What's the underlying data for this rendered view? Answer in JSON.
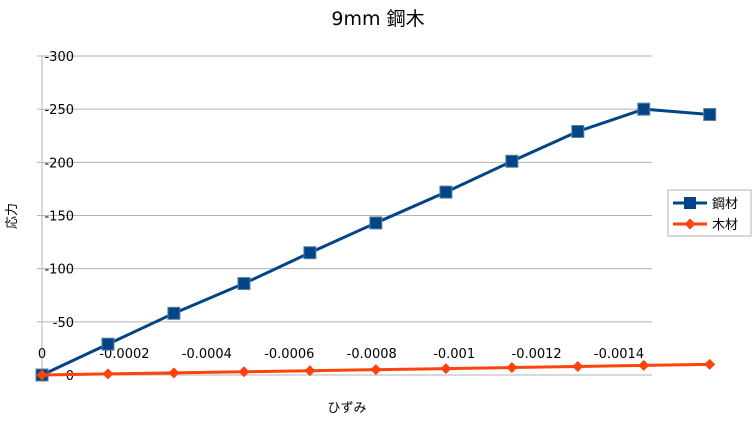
{
  "chart_data": {
    "type": "line",
    "title": "9mm 鋼木",
    "xlabel": "ひずみ",
    "ylabel": "応力",
    "xlim": [
      0,
      -0.00148
    ],
    "ylim": [
      0,
      -300
    ],
    "x_ticks": [
      "0",
      "-0.0002",
      "-0.0004",
      "-0.0006",
      "-0.0008",
      "-0.001",
      "-0.0012",
      "-0.0014"
    ],
    "x_tick_values": [
      0,
      -0.0002,
      -0.0004,
      -0.0006,
      -0.0008,
      -0.001,
      -0.0012,
      -0.0014
    ],
    "y_ticks": [
      "0",
      "-50",
      "-100",
      "-150",
      "-200",
      "-250",
      "-300"
    ],
    "y_tick_values": [
      0,
      -50,
      -100,
      -150,
      -200,
      -250,
      -300
    ],
    "grid": "horizontal",
    "legend_position": "right",
    "series": [
      {
        "name": "鋼材",
        "color": "#004586",
        "marker": "square",
        "x": [
          0,
          -0.00016,
          -0.00032,
          -0.00049,
          -0.00065,
          -0.00081,
          -0.00098,
          -0.00114,
          -0.0013,
          -0.00146,
          -0.00162
        ],
        "y": [
          0,
          -29,
          -58,
          -86,
          -115,
          -143,
          -172,
          -201,
          -229,
          -250,
          -245
        ]
      },
      {
        "name": "木材",
        "color": "#ff420e",
        "marker": "diamond",
        "x": [
          0,
          -0.00016,
          -0.00032,
          -0.00049,
          -0.00065,
          -0.00081,
          -0.00098,
          -0.00114,
          -0.0013,
          -0.00146,
          -0.00162
        ],
        "y": [
          0,
          -1,
          -2,
          -3,
          -4,
          -5,
          -6,
          -7,
          -8,
          -9,
          -10
        ]
      }
    ]
  }
}
